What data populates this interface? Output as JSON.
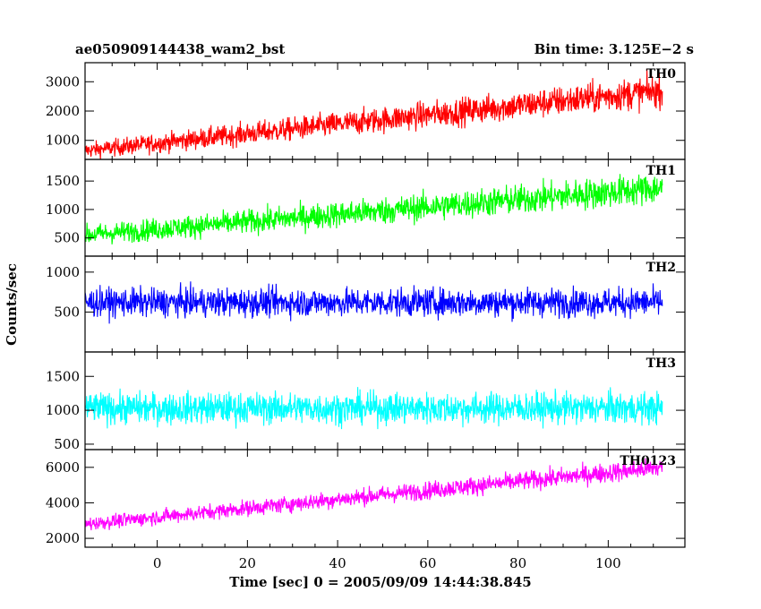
{
  "chart_data": {
    "type": "line",
    "title": "ae050909144438_wam2_bst",
    "subtitle": "Bin time: 3.125E−2 s",
    "xlabel": "Time [sec] 0 = 2005/09/09 14:44:38.845",
    "ylabel": "Counts/sec",
    "xlim": [
      -16,
      117
    ],
    "xticks": [
      0,
      20,
      40,
      60,
      80,
      100
    ],
    "x_range": [
      -16,
      112
    ],
    "panels": [
      {
        "name": "TH0",
        "color": "#ff0000",
        "ylim": [
          350,
          3650
        ],
        "yticks": [
          1000,
          2000,
          3000
        ],
        "trend": {
          "start": 650,
          "end": 2700
        },
        "noise": 350
      },
      {
        "name": "TH1",
        "color": "#00ff00",
        "ylim": [
          180,
          1880
        ],
        "yticks": [
          500,
          1000,
          1500
        ],
        "trend": {
          "start": 550,
          "end": 1380
        },
        "noise": 230
      },
      {
        "name": "TH2",
        "color": "#0000ff",
        "ylim": [
          0,
          1200
        ],
        "yticks": [
          500,
          1000
        ],
        "trend": {
          "start": 620,
          "end": 620
        },
        "noise": 230
      },
      {
        "name": "TH3",
        "color": "#00ffff",
        "ylim": [
          420,
          1860
        ],
        "yticks": [
          500,
          1000,
          1500
        ],
        "trend": {
          "start": 1030,
          "end": 1030
        },
        "noise": 300
      },
      {
        "name": "TH0123",
        "color": "#ff00ff",
        "ylim": [
          1500,
          7000
        ],
        "yticks": [
          2000,
          4000,
          6000
        ],
        "trend": {
          "start": 2800,
          "end": 6000
        },
        "noise": 500
      }
    ]
  }
}
